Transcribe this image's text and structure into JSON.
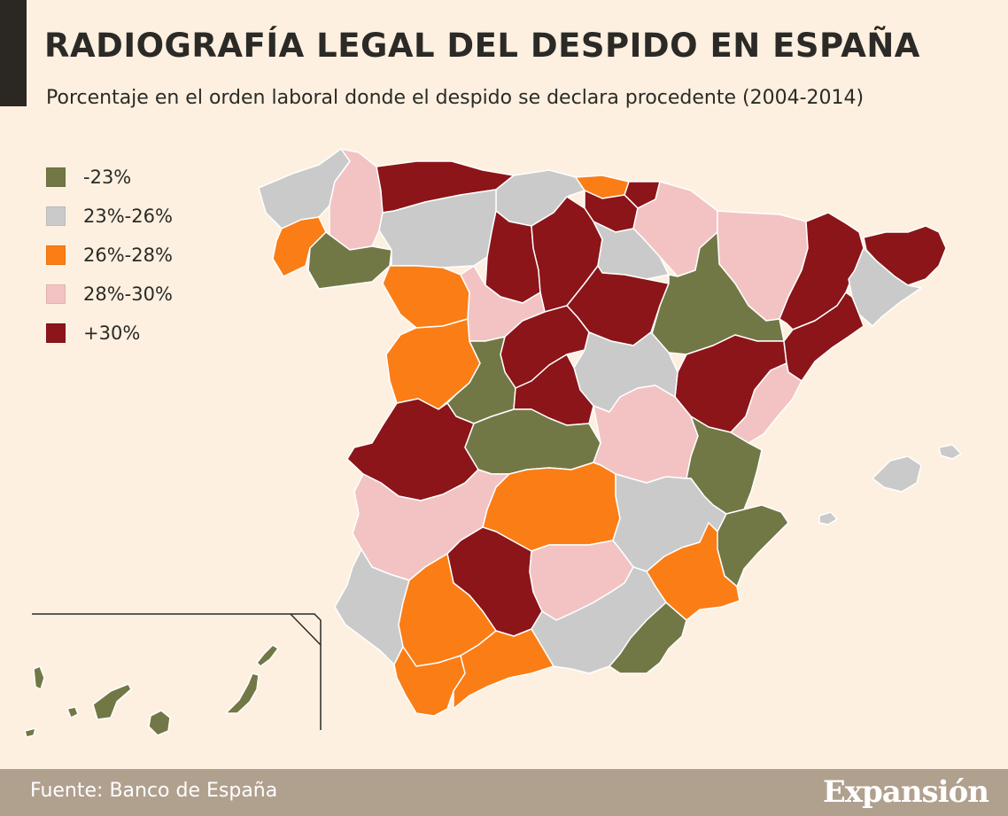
{
  "title": "RADIOGRAFÍA LEGAL DEL DESPIDO EN ESPAÑA",
  "subtitle": "Porcentaje en el orden laboral donde el despido se declara procedente (2004-2014)",
  "legend": [
    {
      "label": "-23%",
      "color": "#727845"
    },
    {
      "label": "23%-26%",
      "color": "#cacaca"
    },
    {
      "label": "26%-28%",
      "color": "#fb7d16"
    },
    {
      "label": "28%-30%",
      "color": "#f3c3c3"
    },
    {
      "label": "+30%",
      "color": "#8b1519"
    }
  ],
  "footer": {
    "source": "Fuente: Banco de España",
    "brand": "Expansión"
  },
  "colors": {
    "background": "#fdf0e0",
    "footer": "#b0a08e",
    "accent_bar": "#2b2722"
  }
}
